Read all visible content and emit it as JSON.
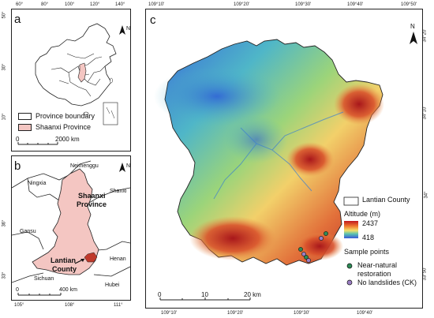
{
  "panel_a": {
    "letter": "a",
    "top_ticks": [
      "60°",
      "80°",
      "100°",
      "120°",
      "140°"
    ],
    "left_ticks": [
      "50°",
      "30°",
      "10°"
    ],
    "north": "N",
    "legend": [
      {
        "label": "Province boundary",
        "fill": "#ffffff"
      },
      {
        "label": "Shaanxi Province",
        "fill": "#f4c6c2"
      }
    ],
    "scale_label": "2000 km",
    "scale_zero": "0"
  },
  "panel_b": {
    "letter": "b",
    "bottom_ticks": [
      "105°",
      "108°",
      "111°"
    ],
    "left_ticks": [
      "36°",
      "33°"
    ],
    "north": "N",
    "regions": {
      "neimenggu": "Neimenggu",
      "ningxia": "Ningxia",
      "shaanxi": "Shaanxi",
      "province": "Province",
      "shanxi": "Shanxi",
      "gansu": "Gansu",
      "henan": "Henan",
      "lantian": "Lantian",
      "county": "County",
      "sichuan": "Sichuan",
      "hubei": "Hubei"
    },
    "scale_zero": "0",
    "scale_label": "400 km"
  },
  "panel_c": {
    "letter": "c",
    "top_ticks": [
      "109°10'",
      "109°20'",
      "109°30'",
      "109°40'",
      "109°50'"
    ],
    "bottom_ticks": [
      "109°10'",
      "109°20'",
      "109°30'",
      "109°40'"
    ],
    "right_ticks": [
      "34°20'",
      "34°10'",
      "34°",
      "33°50'"
    ],
    "north": "N",
    "county_label": "Lantian County",
    "altitude_title": "Altitude (m)",
    "altitude_max": "2437",
    "altitude_min": "418",
    "sample_title": "Sample points",
    "samples": [
      {
        "label1": "Near-natural",
        "label2": "restoration",
        "color": "#2e8b57"
      },
      {
        "label1": "No landslides (CK)",
        "label2": "",
        "color": "#9b7fc4"
      }
    ],
    "scale": [
      "0",
      "10",
      "20 km"
    ]
  }
}
